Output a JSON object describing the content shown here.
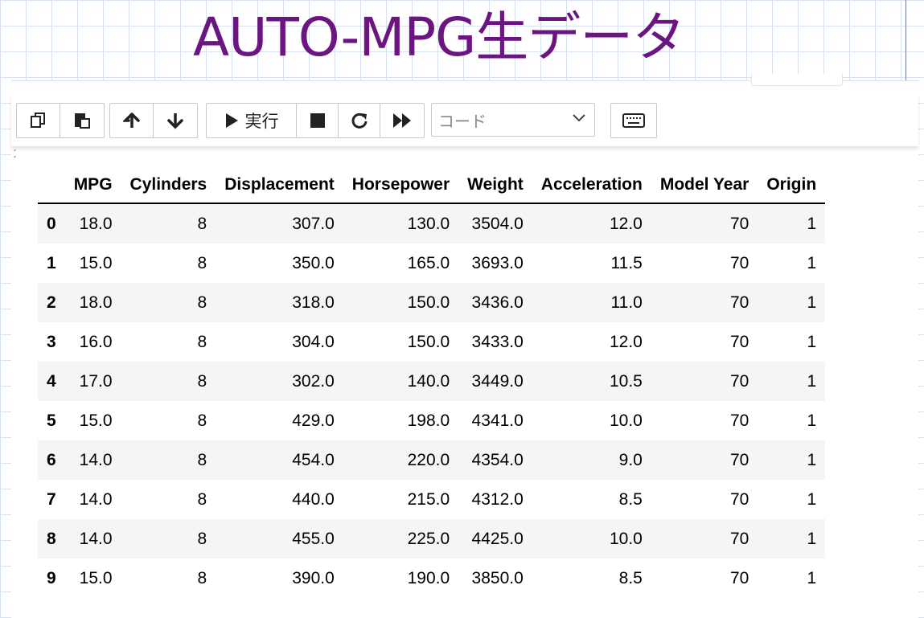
{
  "slide_title": "AUTO-MPG生データ",
  "toolbar": {
    "copy_icon": "copy-cells-icon",
    "paste_icon": "paste-cells-icon",
    "up_icon": "arrow-up-icon",
    "down_icon": "arrow-down-icon",
    "run_label": "実行",
    "stop_icon": "stop-icon",
    "restart_icon": "restart-icon",
    "run_all_icon": "fast-forward-icon",
    "cell_type": "コード",
    "keyboard_icon": "keyboard-icon"
  },
  "table": {
    "columns": [
      "",
      "MPG",
      "Cylinders",
      "Displacement",
      "Horsepower",
      "Weight",
      "Acceleration",
      "Model Year",
      "Origin"
    ],
    "rows": [
      [
        "0",
        "18.0",
        "8",
        "307.0",
        "130.0",
        "3504.0",
        "12.0",
        "70",
        "1"
      ],
      [
        "1",
        "15.0",
        "8",
        "350.0",
        "165.0",
        "3693.0",
        "11.5",
        "70",
        "1"
      ],
      [
        "2",
        "18.0",
        "8",
        "318.0",
        "150.0",
        "3436.0",
        "11.0",
        "70",
        "1"
      ],
      [
        "3",
        "16.0",
        "8",
        "304.0",
        "150.0",
        "3433.0",
        "12.0",
        "70",
        "1"
      ],
      [
        "4",
        "17.0",
        "8",
        "302.0",
        "140.0",
        "3449.0",
        "10.5",
        "70",
        "1"
      ],
      [
        "5",
        "15.0",
        "8",
        "429.0",
        "198.0",
        "4341.0",
        "10.0",
        "70",
        "1"
      ],
      [
        "6",
        "14.0",
        "8",
        "454.0",
        "220.0",
        "4354.0",
        "9.0",
        "70",
        "1"
      ],
      [
        "7",
        "14.0",
        "8",
        "440.0",
        "215.0",
        "4312.0",
        "8.5",
        "70",
        "1"
      ],
      [
        "8",
        "14.0",
        "8",
        "455.0",
        "225.0",
        "4425.0",
        "10.0",
        "70",
        "1"
      ],
      [
        "9",
        "15.0",
        "8",
        "390.0",
        "190.0",
        "3850.0",
        "8.5",
        "70",
        "1"
      ]
    ]
  },
  "colors": {
    "title": "#6a1580",
    "grid": "#d6e2ef",
    "stripe": "#f5f5f5"
  }
}
